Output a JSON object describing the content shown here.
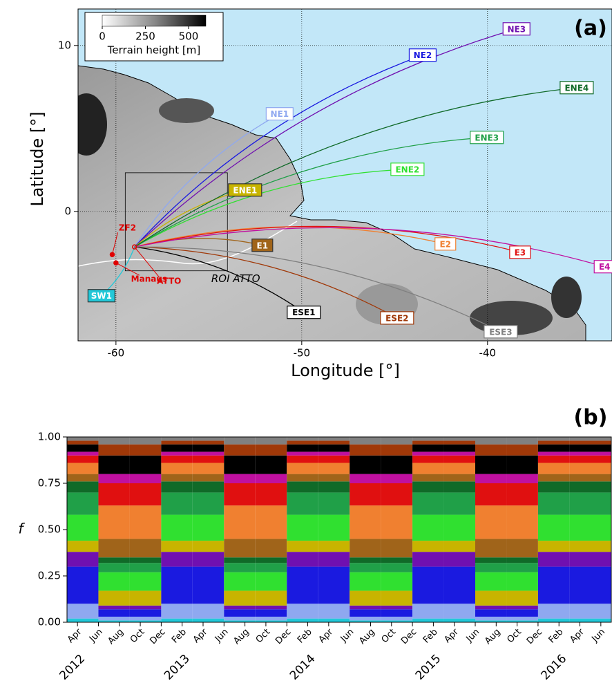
{
  "chart_data": [
    {
      "type": "map",
      "panel_label": "(a)",
      "xlabel": "Longitude [°]",
      "ylabel": "Latitude [°]",
      "xlim": [
        -62.04,
        -33.3
      ],
      "ylim": [
        -7.8,
        12.2
      ],
      "xticks": [
        -60,
        -50,
        -40
      ],
      "yticks": [
        0,
        10
      ],
      "grid": true,
      "colorbar": {
        "label": "Terrain height [m]",
        "lim": [
          0,
          600
        ],
        "ticks": [
          0,
          250,
          500
        ]
      },
      "region": {
        "label": "ROI ATTO",
        "x": [
          -59.5,
          -54.0
        ],
        "y": [
          -3.58,
          2.33
        ]
      },
      "sites": [
        {
          "name": "ZF2",
          "x": -60.2,
          "y": -2.6
        },
        {
          "name": "Manaus",
          "x": -60.0,
          "y": -3.1
        },
        {
          "name": "ATTO",
          "x": -59.0,
          "y": -2.14
        }
      ],
      "series": [
        {
          "name": "SW1",
          "color": "#22c8d8",
          "label_filled": true,
          "x": [
            -59.0,
            -60.78
          ],
          "y": [
            -2.14,
            -5.08
          ]
        },
        {
          "name": "NE1",
          "color": "#8fa8f0",
          "label_filled": false,
          "x": [
            -59.0,
            -51.19
          ],
          "y": [
            -2.14,
            5.88
          ]
        },
        {
          "name": "NE2",
          "color": "#1a1ae0",
          "label_filled": false,
          "x": [
            -59.0,
            -43.49
          ],
          "y": [
            -2.14,
            9.42
          ]
        },
        {
          "name": "NE3",
          "color": "#7010b0",
          "label_filled": false,
          "x": [
            -59.0,
            -38.44
          ],
          "y": [
            -2.14,
            11.0
          ]
        },
        {
          "name": "ENE1",
          "color": "#c8b400",
          "label_filled": true,
          "x": [
            -59.0,
            -53.05
          ],
          "y": [
            -2.14,
            1.29
          ]
        },
        {
          "name": "ENE2",
          "color": "#30e030",
          "label_filled": false,
          "x": [
            -59.0,
            -44.31
          ],
          "y": [
            -2.14,
            2.54
          ]
        },
        {
          "name": "ENE3",
          "color": "#20a048",
          "label_filled": false,
          "x": [
            -59.0,
            -40.04
          ],
          "y": [
            -2.14,
            4.46
          ]
        },
        {
          "name": "ENE4",
          "color": "#106a28",
          "label_filled": false,
          "x": [
            -59.0,
            -35.2
          ],
          "y": [
            -2.14,
            7.46
          ]
        },
        {
          "name": "E1",
          "color": "#a0641a",
          "label_filled": true,
          "x": [
            -59.0,
            -52.12
          ],
          "y": [
            -2.14,
            -2.04
          ]
        },
        {
          "name": "E2",
          "color": "#f08030",
          "label_filled": false,
          "x": [
            -59.0,
            -42.27
          ],
          "y": [
            -2.14,
            -1.96
          ]
        },
        {
          "name": "E3",
          "color": "#e01010",
          "label_filled": false,
          "x": [
            -59.0,
            -38.25
          ],
          "y": [
            -2.14,
            -2.46
          ]
        },
        {
          "name": "E4",
          "color": "#c010a0",
          "label_filled": false,
          "x": [
            -59.0,
            -33.7
          ],
          "y": [
            -2.14,
            -3.33
          ]
        },
        {
          "name": "ESE1",
          "color": "#000000",
          "label_filled": false,
          "x": [
            -59.0,
            -49.89
          ],
          "y": [
            -2.14,
            -6.08
          ]
        },
        {
          "name": "ESE2",
          "color": "#a03808",
          "label_filled": false,
          "x": [
            -59.0,
            -44.87
          ],
          "y": [
            -2.14,
            -6.42
          ]
        },
        {
          "name": "ESE3",
          "color": "#808080",
          "label_filled": false,
          "x": [
            -59.0,
            -39.29
          ],
          "y": [
            -2.14,
            -7.25
          ]
        }
      ]
    },
    {
      "type": "stacked-bar",
      "panel_label": "(b)",
      "ylabel": "f",
      "x": [
        "2012-03",
        "2012-06",
        "2012-09",
        "2012-12",
        "2013-03",
        "2013-06",
        "2013-09",
        "2013-12",
        "2014-03",
        "2014-06",
        "2014-09",
        "2014-12",
        "2015-03",
        "2015-06",
        "2015-09",
        "2015-12",
        "2016-03"
      ],
      "xlim": [
        "2012-03",
        "2016-07"
      ],
      "xticks": [
        {
          "value": "2012-04",
          "label": "Apr"
        },
        {
          "value": "2012-06",
          "label": "Jun"
        },
        {
          "value": "2012-08",
          "label": "Aug"
        },
        {
          "value": "2012-10",
          "label": "Oct"
        },
        {
          "value": "2012-12",
          "label": "Dec"
        },
        {
          "value": "2013-02",
          "label": "Feb"
        },
        {
          "value": "2013-04",
          "label": "Apr"
        },
        {
          "value": "2013-06",
          "label": "Jun"
        },
        {
          "value": "2013-08",
          "label": "Aug"
        },
        {
          "value": "2013-10",
          "label": "Oct"
        },
        {
          "value": "2013-12",
          "label": "Dec"
        },
        {
          "value": "2014-02",
          "label": "Feb"
        },
        {
          "value": "2014-04",
          "label": "Apr"
        },
        {
          "value": "2014-06",
          "label": "Jun"
        },
        {
          "value": "2014-08",
          "label": "Aug"
        },
        {
          "value": "2014-10",
          "label": "Oct"
        },
        {
          "value": "2014-12",
          "label": "Dec"
        },
        {
          "value": "2015-02",
          "label": "Feb"
        },
        {
          "value": "2015-04",
          "label": "Apr"
        },
        {
          "value": "2015-06",
          "label": "Jun"
        },
        {
          "value": "2015-08",
          "label": "Aug"
        },
        {
          "value": "2015-10",
          "label": "Oct"
        },
        {
          "value": "2015-12",
          "label": "Dec"
        },
        {
          "value": "2016-02",
          "label": "Feb"
        },
        {
          "value": "2016-04",
          "label": "Apr"
        },
        {
          "value": "2016-06",
          "label": "Jun"
        }
      ],
      "year_ticks": [
        {
          "value": "2012-04",
          "label": "2012"
        },
        {
          "value": "2013-02",
          "label": "2013"
        },
        {
          "value": "2014-02",
          "label": "2014"
        },
        {
          "value": "2015-02",
          "label": "2015"
        },
        {
          "value": "2016-02",
          "label": "2016"
        }
      ],
      "ylim": [
        0,
        1
      ],
      "yticks": [
        {
          "value": 0,
          "label": "0.00"
        },
        {
          "value": 0.25,
          "label": "0.25"
        },
        {
          "value": 0.5,
          "label": "0.50"
        },
        {
          "value": 0.75,
          "label": "0.75"
        },
        {
          "value": 1,
          "label": "1.00"
        }
      ],
      "series": [
        {
          "name": "SW1",
          "color": "#22c8d8",
          "values": [
            0.02,
            0.01,
            0.01,
            0.02,
            0.02,
            0.01,
            0.01,
            0.02,
            0.02,
            0.01,
            0.01,
            0.02,
            0.02,
            0.01,
            0.01,
            0.02,
            0.02
          ]
        },
        {
          "name": "NE1",
          "color": "#8fa8f0",
          "values": [
            0.08,
            0.02,
            0.02,
            0.08,
            0.08,
            0.02,
            0.02,
            0.08,
            0.08,
            0.02,
            0.02,
            0.08,
            0.08,
            0.02,
            0.02,
            0.08,
            0.08
          ]
        },
        {
          "name": "NE2",
          "color": "#1a1ae0",
          "values": [
            0.2,
            0.04,
            0.04,
            0.2,
            0.2,
            0.04,
            0.04,
            0.2,
            0.2,
            0.04,
            0.04,
            0.2,
            0.2,
            0.04,
            0.04,
            0.2,
            0.2
          ]
        },
        {
          "name": "NE3",
          "color": "#7010b0",
          "values": [
            0.08,
            0.02,
            0.02,
            0.08,
            0.08,
            0.02,
            0.02,
            0.08,
            0.08,
            0.02,
            0.02,
            0.08,
            0.08,
            0.02,
            0.02,
            0.08,
            0.08
          ]
        },
        {
          "name": "ENE1",
          "color": "#c8b400",
          "values": [
            0.06,
            0.08,
            0.08,
            0.06,
            0.06,
            0.08,
            0.08,
            0.06,
            0.06,
            0.08,
            0.08,
            0.06,
            0.06,
            0.08,
            0.08,
            0.06,
            0.06
          ]
        },
        {
          "name": "ENE2",
          "color": "#30e030",
          "values": [
            0.14,
            0.1,
            0.1,
            0.14,
            0.14,
            0.1,
            0.1,
            0.14,
            0.14,
            0.1,
            0.1,
            0.14,
            0.14,
            0.1,
            0.1,
            0.14,
            0.14
          ]
        },
        {
          "name": "ENE3",
          "color": "#20a048",
          "values": [
            0.12,
            0.05,
            0.05,
            0.12,
            0.12,
            0.05,
            0.05,
            0.12,
            0.12,
            0.05,
            0.05,
            0.12,
            0.12,
            0.05,
            0.05,
            0.12,
            0.12
          ]
        },
        {
          "name": "ENE4",
          "color": "#106a28",
          "values": [
            0.06,
            0.03,
            0.03,
            0.06,
            0.06,
            0.03,
            0.03,
            0.06,
            0.06,
            0.03,
            0.03,
            0.06,
            0.06,
            0.03,
            0.03,
            0.06,
            0.06
          ]
        },
        {
          "name": "E1",
          "color": "#a0641a",
          "values": [
            0.04,
            0.1,
            0.1,
            0.04,
            0.04,
            0.1,
            0.1,
            0.04,
            0.04,
            0.1,
            0.1,
            0.04,
            0.04,
            0.1,
            0.1,
            0.04,
            0.04
          ]
        },
        {
          "name": "E2",
          "color": "#f08030",
          "values": [
            0.06,
            0.18,
            0.18,
            0.06,
            0.06,
            0.18,
            0.18,
            0.06,
            0.06,
            0.18,
            0.18,
            0.06,
            0.06,
            0.18,
            0.18,
            0.06,
            0.06
          ]
        },
        {
          "name": "E3",
          "color": "#e01010",
          "values": [
            0.04,
            0.12,
            0.12,
            0.04,
            0.04,
            0.12,
            0.12,
            0.04,
            0.04,
            0.12,
            0.12,
            0.04,
            0.04,
            0.12,
            0.12,
            0.04,
            0.04
          ]
        },
        {
          "name": "E4",
          "color": "#c010a0",
          "values": [
            0.02,
            0.05,
            0.05,
            0.02,
            0.02,
            0.05,
            0.05,
            0.02,
            0.02,
            0.05,
            0.05,
            0.02,
            0.02,
            0.05,
            0.05,
            0.02,
            0.02
          ]
        },
        {
          "name": "ESE1",
          "color": "#000000",
          "values": [
            0.04,
            0.1,
            0.1,
            0.04,
            0.04,
            0.1,
            0.1,
            0.04,
            0.04,
            0.1,
            0.1,
            0.04,
            0.04,
            0.1,
            0.1,
            0.04,
            0.04
          ]
        },
        {
          "name": "ESE2",
          "color": "#a03808",
          "values": [
            0.02,
            0.06,
            0.06,
            0.02,
            0.02,
            0.06,
            0.06,
            0.02,
            0.02,
            0.06,
            0.06,
            0.02,
            0.02,
            0.06,
            0.06,
            0.02,
            0.02
          ]
        },
        {
          "name": "ESE3",
          "color": "#808080",
          "values": [
            0.02,
            0.04,
            0.04,
            0.02,
            0.02,
            0.04,
            0.04,
            0.02,
            0.02,
            0.04,
            0.04,
            0.02,
            0.02,
            0.04,
            0.04,
            0.02,
            0.02
          ]
        }
      ]
    }
  ]
}
